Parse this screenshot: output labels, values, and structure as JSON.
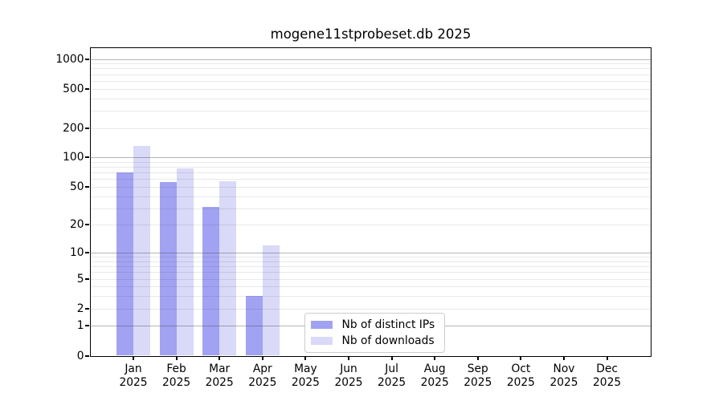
{
  "title": "mogene11stprobeset.db 2025",
  "legend": {
    "items": [
      {
        "label": "Nb of distinct IPs",
        "color": "#a2a2f2"
      },
      {
        "label": "Nb of downloads",
        "color": "#d9d9f8"
      }
    ]
  },
  "chart_data": {
    "type": "bar",
    "title": "mogene11stprobeset.db 2025",
    "categories": [
      "Jan",
      "Feb",
      "Mar",
      "Apr",
      "May",
      "Jun",
      "Jul",
      "Aug",
      "Sep",
      "Oct",
      "Nov",
      "Dec"
    ],
    "category_year": "2025",
    "series": [
      {
        "name": "Nb of distinct IPs",
        "color": "#a2a2f2",
        "values": [
          70,
          56,
          31,
          3,
          0,
          0,
          0,
          0,
          0,
          0,
          0,
          0
        ]
      },
      {
        "name": "Nb of downloads",
        "color": "#d9d9f8",
        "values": [
          132,
          77,
          57,
          12,
          0,
          0,
          0,
          0,
          0,
          0,
          0,
          0
        ]
      }
    ],
    "xlabel": "",
    "ylabel": "",
    "yscale": "log1p",
    "ylim": [
      0,
      1300
    ],
    "y_ticks": [
      1000,
      500,
      200,
      100,
      50,
      20,
      10,
      5,
      2,
      1,
      0
    ],
    "grid": "horizontal",
    "legend_position": "lower center"
  }
}
